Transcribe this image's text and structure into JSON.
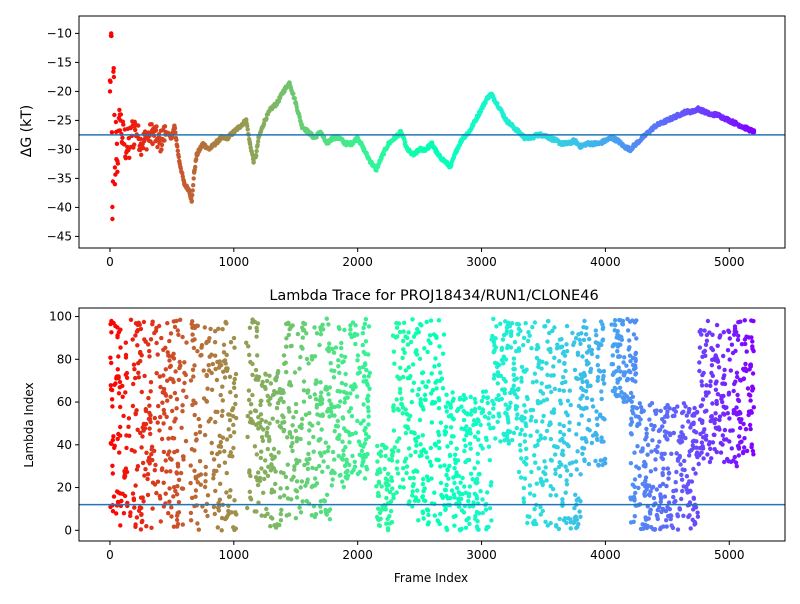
{
  "chart_data": [
    {
      "type": "scatter",
      "title": "",
      "xlabel": "",
      "ylabel": "ΔG (kT)",
      "xlim": [
        -250,
        5450
      ],
      "ylim": [
        -47,
        -7
      ],
      "xticks": [
        0,
        1000,
        2000,
        3000,
        4000,
        5000
      ],
      "yticks": [
        -45,
        -40,
        -35,
        -30,
        -25,
        -20,
        -15,
        -10
      ],
      "hline": -27.5,
      "hline_color": "#1f77b4",
      "colormap": "rainbow (red at frame 0 to violet at frame 5200)",
      "grid": false,
      "series": [
        {
          "x": [
            0,
            10,
            20,
            30,
            40,
            50,
            60,
            80,
            100,
            150,
            200,
            250,
            300,
            350,
            400,
            450,
            500,
            520,
            560,
            600,
            640,
            660,
            680,
            700,
            750,
            800,
            850,
            900,
            950,
            1000,
            1050,
            1100,
            1130,
            1160,
            1180,
            1200,
            1250,
            1300,
            1350,
            1400,
            1450,
            1500,
            1550,
            1600,
            1650,
            1700,
            1750,
            1800,
            1850,
            1900,
            1950,
            2000,
            2050,
            2100,
            2150,
            2200,
            2250,
            2300,
            2350,
            2400,
            2450,
            2500,
            2550,
            2600,
            2650,
            2700,
            2750,
            2800,
            2850,
            2900,
            2950,
            3000,
            3050,
            3080,
            3150,
            3200,
            3250,
            3300,
            3350,
            3400,
            3450,
            3500,
            3550,
            3600,
            3650,
            3700,
            3750,
            3800,
            3850,
            3900,
            3950,
            4000,
            4050,
            4100,
            4150,
            4200,
            4250,
            4300,
            4350,
            4400,
            4450,
            4500,
            4550,
            4600,
            4650,
            4700,
            4750,
            4800,
            4850,
            4900,
            4950,
            5000,
            5050,
            5100,
            5150,
            5200
          ],
          "y": [
            -20,
            -10,
            -42,
            -16,
            -36,
            -27,
            -32,
            -24,
            -28,
            -30,
            -26,
            -29,
            -28,
            -27,
            -29,
            -27,
            -28,
            -26,
            -32,
            -36,
            -37,
            -39,
            -34,
            -31,
            -29,
            -30,
            -29,
            -28,
            -28,
            -27,
            -26,
            -25,
            -29,
            -32,
            -31,
            -28,
            -25,
            -23,
            -22,
            -20,
            -18.5,
            -22,
            -26,
            -27,
            -28,
            -27,
            -29,
            -28,
            -28,
            -29,
            -29,
            -28,
            -30,
            -32,
            -33.5,
            -31,
            -29,
            -28,
            -27,
            -30,
            -31,
            -30,
            -30,
            -29,
            -31,
            -32,
            -33,
            -30,
            -28,
            -27,
            -25,
            -23,
            -21,
            -20.5,
            -23,
            -25,
            -26,
            -27,
            -28,
            -28,
            -27.5,
            -27.5,
            -28,
            -28.5,
            -29,
            -29,
            -28.5,
            -29.5,
            -29,
            -29,
            -29,
            -28.5,
            -28,
            -28.5,
            -29.5,
            -30,
            -29,
            -28,
            -27,
            -26,
            -25.5,
            -25,
            -24.5,
            -24,
            -23.5,
            -23.5,
            -23,
            -23.5,
            -24,
            -24,
            -24.5,
            -25,
            -25.5,
            -26,
            -26.5,
            -27
          ]
        }
      ]
    },
    {
      "type": "scatter",
      "title": "Lambda Trace for PROJ18434/RUN1/CLONE46",
      "xlabel": "Frame Index",
      "ylabel": "Lambda Index",
      "xlim": [
        -250,
        5450
      ],
      "ylim": [
        -5,
        104
      ],
      "xticks": [
        0,
        1000,
        2000,
        3000,
        4000,
        5000
      ],
      "yticks": [
        0,
        20,
        40,
        60,
        80,
        100
      ],
      "hline": 12,
      "hline_color": "#1f77b4",
      "colormap": "rainbow (red at frame 0 to violet at frame 5200)",
      "grid": false,
      "bands": [
        {
          "x_start": 0,
          "x_end": 60,
          "y_min": 0,
          "y_max": 98
        },
        {
          "x_start": 60,
          "x_end": 620,
          "y_min": 0,
          "y_max": 99
        },
        {
          "x_start": 650,
          "x_end": 1020,
          "y_min": 0,
          "y_max": 99
        },
        {
          "x_start": 1100,
          "x_end": 1200,
          "y_min": 2,
          "y_max": 99
        },
        {
          "x_start": 1200,
          "x_end": 1400,
          "y_min": 0,
          "y_max": 75
        },
        {
          "x_start": 1400,
          "x_end": 1800,
          "y_min": 5,
          "y_max": 99
        },
        {
          "x_start": 1800,
          "x_end": 2100,
          "y_min": 20,
          "y_max": 99
        },
        {
          "x_start": 2150,
          "x_end": 2280,
          "y_min": 0,
          "y_max": 40
        },
        {
          "x_start": 2280,
          "x_end": 2480,
          "y_min": 10,
          "y_max": 99
        },
        {
          "x_start": 2480,
          "x_end": 2700,
          "y_min": 2,
          "y_max": 99
        },
        {
          "x_start": 2700,
          "x_end": 3080,
          "y_min": 0,
          "y_max": 65
        },
        {
          "x_start": 3080,
          "x_end": 3300,
          "y_min": 40,
          "y_max": 99
        },
        {
          "x_start": 3300,
          "x_end": 3800,
          "y_min": 0,
          "y_max": 99
        },
        {
          "x_start": 3800,
          "x_end": 4000,
          "y_min": 30,
          "y_max": 99
        },
        {
          "x_start": 4050,
          "x_end": 4250,
          "y_min": 60,
          "y_max": 99
        },
        {
          "x_start": 4200,
          "x_end": 4750,
          "y_min": 0,
          "y_max": 60
        },
        {
          "x_start": 4750,
          "x_end": 5200,
          "y_min": 30,
          "y_max": 99
        }
      ]
    }
  ]
}
